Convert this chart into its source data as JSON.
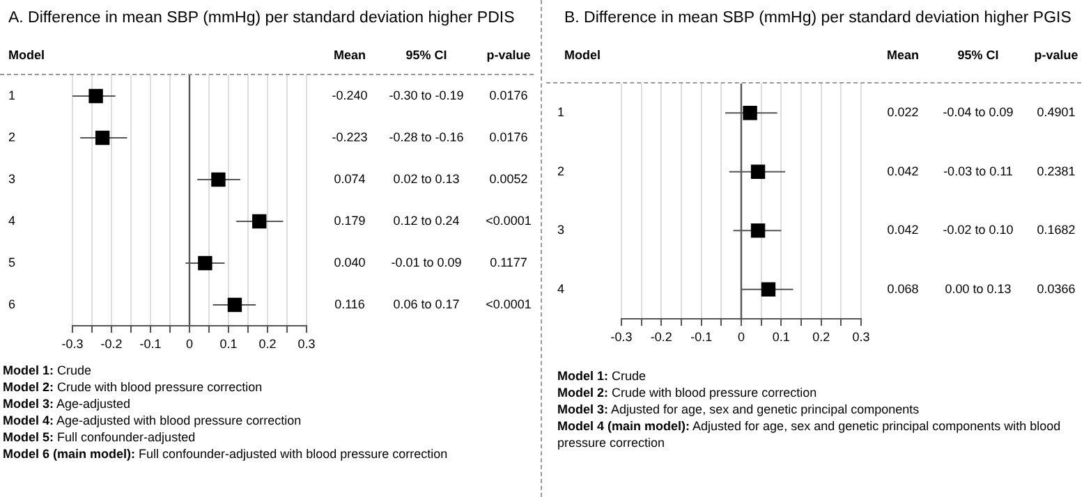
{
  "chart_data": [
    {
      "type": "scatter",
      "title": "A. Difference in mean SBP (mmHg) per standard deviation higher PDIS",
      "orientation": "horizontal",
      "marker": "square",
      "color": "#000000",
      "grid": "x",
      "categories": [
        "1",
        "2",
        "3",
        "4",
        "5",
        "6"
      ],
      "values": [
        -0.24,
        -0.223,
        0.074,
        0.179,
        0.04,
        0.116
      ],
      "value_labels": [
        "-0.240",
        "-0.223",
        "0.074",
        "0.179",
        "0.040",
        "0.116"
      ],
      "errors": [
        [
          -0.3,
          -0.19
        ],
        [
          -0.28,
          -0.16
        ],
        [
          0.02,
          0.13
        ],
        [
          0.12,
          0.24
        ],
        [
          -0.01,
          0.09
        ],
        [
          0.06,
          0.17
        ]
      ],
      "xlim": [
        -0.3,
        0.3
      ],
      "xticks": [
        -0.3,
        {
          "value": -0.25,
          "label": null
        },
        -0.2,
        {
          "value": -0.15,
          "label": null
        },
        -0.1,
        {
          "value": -0.05,
          "label": null
        },
        0,
        {
          "value": 0.05,
          "label": null
        },
        0.1,
        {
          "value": 0.15,
          "label": null
        },
        0.2,
        {
          "value": 0.25,
          "label": null
        },
        0.3
      ],
      "ref_lines": [
        {
          "axis": "x",
          "value": 0,
          "color": "#555555"
        }
      ],
      "annotations": [
        "Model",
        "Mean",
        "95% CI",
        "p-value",
        "-0.30 to -0.19",
        "0.0176",
        "-0.28 to -0.16",
        "0.0176",
        "0.02 to 0.13",
        "0.0052",
        "0.12 to 0.24",
        "<0.0001",
        "-0.01 to 0.09",
        "0.1177",
        "0.06 to 0.17",
        "<0.0001",
        "Model 1: Crude",
        "Model 2: Crude with blood pressure correction",
        "Model 3: Age-adjusted",
        "Model 4: Age-adjusted with blood pressure correction",
        "Model 5: Full confounder-adjusted",
        "Model 6 (main model): Full confounder-adjusted with blood pressure correction"
      ]
    },
    {
      "type": "scatter",
      "title": "B. Difference in mean SBP (mmHg) per standard deviation higher PGIS",
      "orientation": "horizontal",
      "marker": "square",
      "color": "#000000",
      "grid": "x",
      "categories": [
        "1",
        "2",
        "3",
        "4"
      ],
      "values": [
        0.022,
        0.042,
        0.042,
        0.068
      ],
      "value_labels": [
        "0.022",
        "0.042",
        "0.042",
        "0.068"
      ],
      "errors": [
        [
          -0.04,
          0.09
        ],
        [
          -0.03,
          0.11
        ],
        [
          -0.02,
          0.1
        ],
        [
          0.0,
          0.13
        ]
      ],
      "xlim": [
        -0.3,
        0.3
      ],
      "xticks": [
        -0.3,
        {
          "value": -0.25,
          "label": null
        },
        -0.2,
        {
          "value": -0.15,
          "label": null
        },
        -0.1,
        {
          "value": -0.05,
          "label": null
        },
        0,
        {
          "value": 0.05,
          "label": null
        },
        0.1,
        {
          "value": 0.15,
          "label": null
        },
        0.2,
        {
          "value": 0.25,
          "label": null
        },
        0.3
      ],
      "ref_lines": [
        {
          "axis": "x",
          "value": 0,
          "color": "#555555"
        }
      ],
      "annotations": [
        "Model",
        "Mean",
        "95% CI",
        "p-value",
        "-0.04 to 0.09",
        "0.4901",
        "-0.03 to 0.11",
        "0.2381",
        "-0.02 to 0.10",
        "0.1682",
        "0.00 to 0.13",
        "0.0366",
        "Model 1: Crude",
        "Model 2: Crude with blood pressure correction",
        "Model 3: Adjusted for age, sex and genetic principal components",
        "Model 4 (main model): Adjusted for age, sex and genetic principal components with blood pressure correction"
      ]
    }
  ]
}
